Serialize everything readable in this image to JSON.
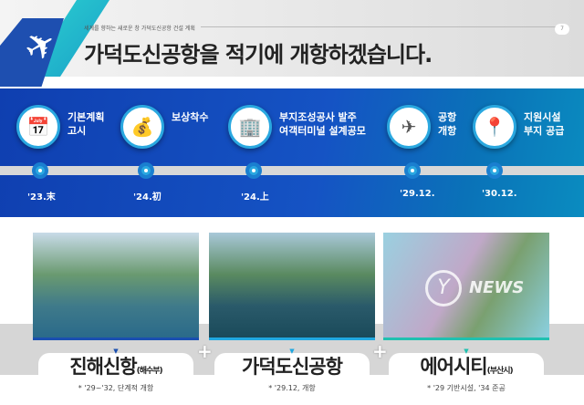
{
  "header": {
    "subtitle": "세계를 향하는 새로운 창 가덕도신공항 건설 계획",
    "page_number": "7",
    "title": "가덕도신공항을 적기에 개항하겠습니다."
  },
  "timeline": [
    {
      "icon": "calendar-check-icon",
      "glyph": "📅",
      "label": "기본계획\n고시",
      "date": "'23.末"
    },
    {
      "icon": "coins-icon",
      "glyph": "💰",
      "label": "보상착수",
      "date": "'24.初"
    },
    {
      "icon": "building-plane-icon",
      "glyph": "🏢",
      "label": "부지조성공사 발주\n여객터미널 설계공모",
      "date": "'24.上"
    },
    {
      "icon": "airplane-takeoff-icon",
      "glyph": "✈",
      "label": "공항\n개항",
      "date": "'29.12."
    },
    {
      "icon": "map-pin-icon",
      "glyph": "📍",
      "label": "지원시설\n부지 공급",
      "date": "'30.12."
    }
  ],
  "cards": [
    {
      "name": "진해신항",
      "suffix": "(해수부)",
      "note": "* '29~'32, 단계적 개항",
      "color": "#1a4fb0"
    },
    {
      "name": "가덕도신공항",
      "suffix": "",
      "note": "* '29.12, 개항",
      "color": "#20a8e0"
    },
    {
      "name": "에어시티",
      "suffix": "(부산시)",
      "note": "* '29 기반시설, '34 준공",
      "color": "#20c0b0"
    }
  ],
  "watermark": "NEWS"
}
